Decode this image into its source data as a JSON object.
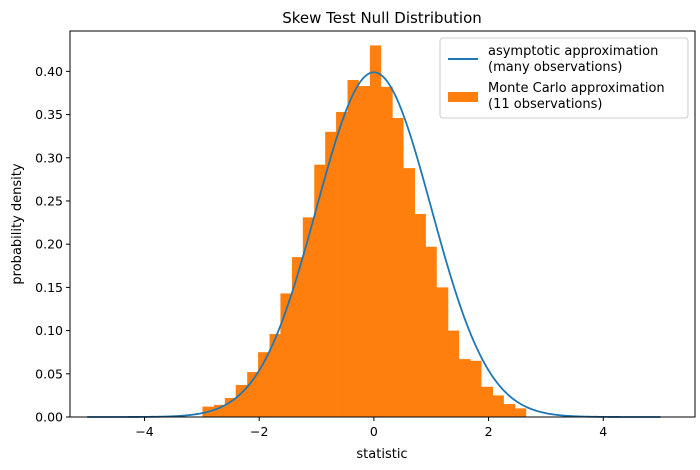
{
  "chart_data": {
    "type": "bar",
    "title": "Skew Test Null Distribution",
    "xlabel": "statistic",
    "ylabel": "probability density",
    "xlim": [
      -5.3,
      5.6
    ],
    "ylim": [
      0,
      0.4467
    ],
    "grid": false,
    "legend_position": "top-right",
    "xticks": [
      -4,
      -2,
      0,
      2,
      4
    ],
    "xtick_labels": [
      "−4",
      "−2",
      "0",
      "2",
      "4"
    ],
    "yticks": [
      0.0,
      0.05,
      0.1,
      0.15,
      0.2,
      0.25,
      0.3,
      0.35,
      0.4
    ],
    "ytick_labels": [
      "0.00",
      "0.05",
      "0.10",
      "0.15",
      "0.20",
      "0.25",
      "0.30",
      "0.35",
      "0.40"
    ],
    "series": [
      {
        "name": "asymptotic approximation\n(many observations)",
        "type": "line",
        "color": "#1f77b4",
        "x_range": [
          -5,
          5
        ],
        "distribution": "standard normal density"
      },
      {
        "name": "Monte Carlo approximation\n(11 observations)",
        "type": "histogram",
        "color": "#ff7f0e",
        "bin_edges": [
          -2.99,
          -2.79,
          -2.6,
          -2.41,
          -2.21,
          -2.02,
          -1.82,
          -1.63,
          -1.43,
          -1.24,
          -1.04,
          -0.85,
          -0.66,
          -0.46,
          -0.27,
          -0.07,
          0.12,
          0.32,
          0.51,
          0.71,
          0.9,
          1.09,
          1.29,
          1.48,
          1.68,
          1.87,
          2.07,
          2.26,
          2.46,
          2.65,
          2.84
        ],
        "heights": [
          0.012,
          0.014,
          0.022,
          0.037,
          0.052,
          0.075,
          0.096,
          0.143,
          0.185,
          0.231,
          0.292,
          0.33,
          0.353,
          0.39,
          0.383,
          0.43,
          0.382,
          0.346,
          0.288,
          0.235,
          0.197,
          0.15,
          0.1,
          0.067,
          0.065,
          0.035,
          0.025,
          0.015,
          0.01,
          0.0
        ]
      }
    ],
    "legend": [
      {
        "line1": "asymptotic approximation",
        "line2": "(many observations)"
      },
      {
        "line1": "Monte Carlo approximation",
        "line2": "(11 observations)"
      }
    ]
  }
}
